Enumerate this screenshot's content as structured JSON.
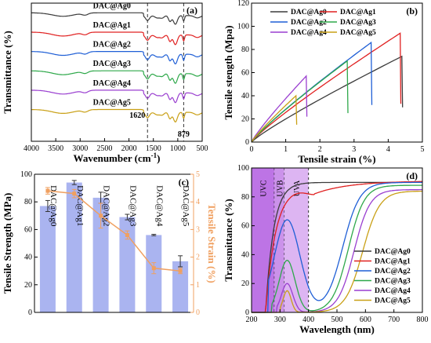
{
  "chart_data": [
    {
      "panel": "(a)",
      "type": "line",
      "xlabel": "Wavenumber (cm",
      "xlabel_sup": "-1",
      "xlabel_tail": ")",
      "ylabel": "Transmittance (%)",
      "xlim": [
        4000,
        500
      ],
      "xticks": [
        4000,
        3500,
        3000,
        2500,
        2000,
        1500,
        1000,
        500
      ],
      "annotations": [
        "1620",
        "879"
      ],
      "dashed_lines_x": [
        1620,
        879
      ],
      "series": [
        {
          "name": "DAC@Ag0",
          "color": "#3c3c3c",
          "baseline": 0.93
        },
        {
          "name": "DAC@Ag1",
          "color": "#e02020",
          "baseline": 0.79
        },
        {
          "name": "DAC@Ag2",
          "color": "#1f5fd6",
          "baseline": 0.65
        },
        {
          "name": "DAC@Ag3",
          "color": "#2ea84a",
          "baseline": 0.51
        },
        {
          "name": "DAC@Ag4",
          "color": "#9a3fd0",
          "baseline": 0.37
        },
        {
          "name": "DAC@Ag5",
          "color": "#c9a016",
          "baseline": 0.23
        }
      ]
    },
    {
      "panel": "(b)",
      "type": "line",
      "xlabel": "Tensile strain (%)",
      "ylabel": "Tensile stength (Mpa)",
      "xlim": [
        0,
        5
      ],
      "ylim": [
        0,
        120
      ],
      "xticks": [
        0,
        1,
        2,
        3,
        4,
        5
      ],
      "yticks": [
        0,
        20,
        40,
        60,
        80,
        100,
        120
      ],
      "legend": "top-left",
      "series": [
        {
          "name": "DAC@Ag0",
          "color": "#3c3c3c",
          "break_strain": 4.4,
          "peak_stress": 74,
          "drop_stress": 30
        },
        {
          "name": "DAC@Ag1",
          "color": "#e02020",
          "break_strain": 4.35,
          "peak_stress": 94,
          "drop_stress": 33
        },
        {
          "name": "DAC@Ag2",
          "color": "#1f5fd6",
          "break_strain": 3.5,
          "peak_stress": 86,
          "drop_stress": 32
        },
        {
          "name": "DAC@Ag3",
          "color": "#2ea84a",
          "break_strain": 2.8,
          "peak_stress": 70,
          "drop_stress": 25
        },
        {
          "name": "DAC@Ag4",
          "color": "#9a3fd0",
          "break_strain": 1.6,
          "peak_stress": 57,
          "drop_stress": 22
        },
        {
          "name": "DAC@Ag5",
          "color": "#c9a016",
          "break_strain": 1.3,
          "peak_stress": 40,
          "drop_stress": 15
        }
      ]
    },
    {
      "panel": "(c)",
      "type": "bar",
      "categories": [
        "DAC@Ag0",
        "DAC@Ag1",
        "DAC@Ag2",
        "DAC@Ag3",
        "DAC@Ag4",
        "DAC@Ag5"
      ],
      "ylabel": "Tensile Strength (MPa)",
      "y2label": "Tensile Strain (%)",
      "ylim": [
        0,
        100
      ],
      "y2lim": [
        0,
        5
      ],
      "yticks": [
        0,
        20,
        40,
        60,
        80,
        100
      ],
      "y2ticks": [
        0,
        1,
        2,
        3,
        4,
        5
      ],
      "series": [
        {
          "name": "Tensile Strength",
          "values": [
            77,
            94,
            83,
            69,
            56,
            37
          ],
          "errors": [
            4,
            1.5,
            4,
            2,
            0.5,
            4
          ],
          "color": "#aab4f0"
        },
        {
          "name": "Tensile Strain",
          "values": [
            4.4,
            4.3,
            3.5,
            2.8,
            1.6,
            1.5
          ],
          "errors": [
            0.12,
            0.15,
            0.45,
            0.15,
            0.2,
            0.1
          ],
          "color": "#f0a060"
        }
      ]
    },
    {
      "panel": "(d)",
      "type": "line",
      "xlabel": "Wavelength (nm)",
      "ylabel": "Transmittance (%)",
      "xlim": [
        200,
        800
      ],
      "ylim": [
        0,
        100
      ],
      "xticks": [
        200,
        300,
        400,
        500,
        600,
        700,
        800
      ],
      "yticks": [
        0,
        20,
        40,
        60,
        80,
        100
      ],
      "uv_bands": [
        {
          "label": "UVC",
          "from": 200,
          "to": 280
        },
        {
          "label": "UVB",
          "from": 280,
          "to": 315
        },
        {
          "label": "UVA",
          "from": 315,
          "to": 400
        }
      ],
      "legend": "bottom-right",
      "series": [
        {
          "name": "DAC@Ag0",
          "color": "#3c3c3c"
        },
        {
          "name": "DAC@Ag1",
          "color": "#e02020"
        },
        {
          "name": "DAC@Ag2",
          "color": "#1f5fd6"
        },
        {
          "name": "DAC@Ag3",
          "color": "#2ea84a"
        },
        {
          "name": "DAC@Ag4",
          "color": "#9a3fd0"
        },
        {
          "name": "DAC@Ag5",
          "color": "#c9a016"
        }
      ]
    }
  ]
}
